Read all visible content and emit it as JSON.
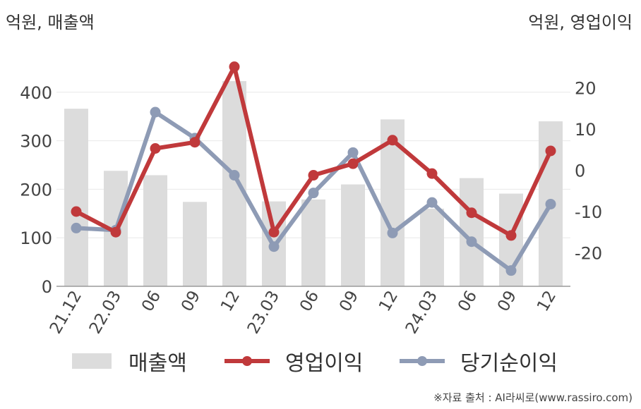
{
  "header": {
    "left_unit": "억원, 매출액",
    "right_unit": "억원, 영업이익"
  },
  "chart_data": {
    "type": "bar",
    "categories": [
      "21.12",
      "22.03",
      "06",
      "09",
      "12",
      "23.03",
      "06",
      "09",
      "12",
      "24.03",
      "06",
      "09",
      "12"
    ],
    "series": [
      {
        "name": "매출액",
        "type": "bar",
        "axis": "left",
        "color": "#dcdcdc",
        "values": [
          366,
          238,
          229,
          174,
          423,
          175,
          179,
          210,
          344,
          160,
          223,
          191,
          340
        ]
      },
      {
        "name": "영업이익",
        "type": "line",
        "axis": "right",
        "color": "#c0393b",
        "values": [
          -10,
          -15,
          5.3,
          6.8,
          25.1,
          -15,
          -1.2,
          1.6,
          7.3,
          -0.8,
          -10.3,
          -15.8,
          4.7
        ]
      },
      {
        "name": "당기순이익",
        "type": "line",
        "axis": "right",
        "color": "#8e9bb5",
        "values": [
          -14,
          -14.5,
          14.1,
          7.8,
          -1.2,
          -18.5,
          -5.5,
          4.3,
          -15.2,
          -7.8,
          -17.3,
          -24.3,
          -8.2
        ]
      }
    ],
    "left_axis": {
      "ticks": [
        0,
        100,
        200,
        300,
        400
      ],
      "range": [
        0,
        470
      ]
    },
    "right_axis": {
      "ticks": [
        -20,
        -10,
        0,
        10,
        20
      ],
      "range": [
        -28,
        27
      ]
    },
    "legend_position": "bottom",
    "grid": true
  },
  "source": "※자료 출처 : AI라씨로(www.rassiro.com)"
}
